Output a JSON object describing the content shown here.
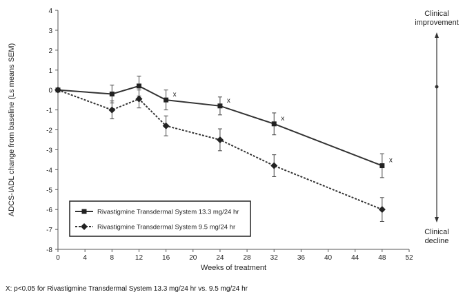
{
  "chart_data": {
    "type": "line",
    "xlabel": "Weeks of treatment",
    "ylabel": "ADCS-IADL change from baseline (Ls means SEM)",
    "xlim": [
      0,
      52
    ],
    "ylim": [
      -8,
      4
    ],
    "xticks": [
      0,
      4,
      8,
      12,
      16,
      20,
      24,
      28,
      32,
      36,
      40,
      44,
      48,
      52
    ],
    "yticks": [
      4,
      3,
      2,
      1,
      0,
      -1,
      -2,
      -3,
      -4,
      -5,
      -6,
      -7,
      -8
    ],
    "grid": false,
    "legend_position": "bottom-left",
    "series": [
      {
        "name": "Rivastigmine Transdermal System 13.3 mg/24 hr",
        "marker": "square",
        "line_style": "solid",
        "color": "#333333",
        "x": [
          0,
          8,
          12,
          16,
          24,
          32,
          48
        ],
        "y": [
          0,
          -0.2,
          0.2,
          -0.5,
          -0.8,
          -1.7,
          -3.8
        ],
        "error": [
          0,
          0.45,
          0.5,
          0.5,
          0.45,
          0.55,
          0.6
        ]
      },
      {
        "name": "Rivastigmine Transdermal System 9.5 mg/24 hr",
        "marker": "diamond",
        "line_style": "dashed",
        "color": "#333333",
        "x": [
          0,
          8,
          12,
          16,
          24,
          32,
          48
        ],
        "y": [
          0,
          -1.0,
          -0.45,
          -1.8,
          -2.5,
          -3.8,
          -6.0
        ],
        "error": [
          0,
          0.45,
          0.45,
          0.5,
          0.55,
          0.55,
          0.6
        ]
      }
    ],
    "significance_marks": [
      {
        "x": 16,
        "y": -0.5,
        "label": "x"
      },
      {
        "x": 24,
        "y": -0.8,
        "label": "x"
      },
      {
        "x": 32,
        "y": -1.7,
        "label": "x"
      },
      {
        "x": 48,
        "y": -3.8,
        "label": "x"
      }
    ],
    "side_annotation": {
      "top": "Clinical improvement",
      "bottom": "Clinical decline"
    },
    "footnote": "X: p<0.05 for Rivastigmine Transdermal System 13.3 mg/24 hr vs. 9.5 mg/24 hr"
  }
}
